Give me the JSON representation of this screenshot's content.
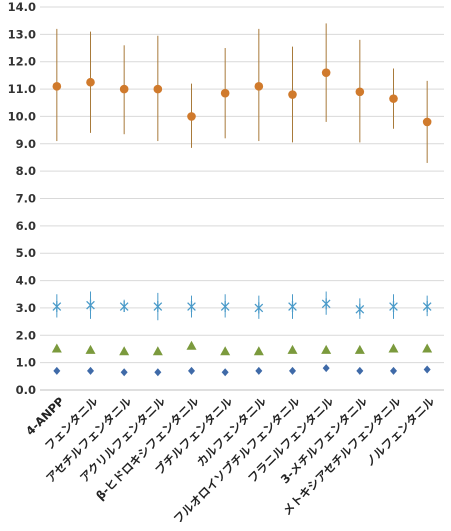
{
  "chart_data": {
    "type": "scatter",
    "title": "",
    "xlabel": "",
    "ylabel": "",
    "ylim": [
      0,
      14
    ],
    "ytick_step": 1,
    "ytick_labels": [
      "0.0",
      "1.0",
      "2.0",
      "3.0",
      "4.0",
      "5.0",
      "6.0",
      "7.0",
      "8.0",
      "9.0",
      "10.0",
      "11.0",
      "12.0",
      "13.0",
      "14.0"
    ],
    "grid": true,
    "legend": "none",
    "categories": [
      "4-ANPP",
      "フェンタニル",
      "アセチルフェンタニル",
      "アクリルフェンタニル",
      "β-ヒドロキシフェンタニル",
      "ブチルフェンタニル",
      "カルフェンタニル",
      "フルオロイソブチルフェンタニル",
      "フラニルフェンタニル",
      "3-メチルフェンタニル",
      "メトキシアセチルフェンタニル",
      "ノルフェンタニル"
    ],
    "series": [
      {
        "marker": "circle",
        "color": "#d07a2c",
        "error_bar_color": "#a87a3a",
        "values": [
          11.1,
          11.25,
          11.0,
          11.0,
          10.0,
          10.85,
          11.1,
          10.8,
          11.6,
          10.9,
          10.65,
          9.8
        ],
        "low": [
          9.1,
          9.4,
          9.35,
          9.1,
          8.85,
          9.2,
          9.1,
          9.05,
          9.8,
          9.05,
          9.55,
          8.3
        ],
        "high": [
          13.2,
          13.1,
          12.6,
          12.95,
          11.2,
          12.5,
          13.2,
          12.55,
          13.4,
          12.8,
          11.75,
          11.3
        ]
      },
      {
        "marker": "star",
        "color": "#4b9bc9",
        "values": [
          3.05,
          3.1,
          3.05,
          3.05,
          3.05,
          3.05,
          3.0,
          3.05,
          3.15,
          2.95,
          3.05,
          3.05
        ],
        "low": [
          2.65,
          2.6,
          2.85,
          2.55,
          2.65,
          2.65,
          2.6,
          2.6,
          2.75,
          2.6,
          2.6,
          2.7
        ],
        "high": [
          3.5,
          3.6,
          3.3,
          3.55,
          3.45,
          3.5,
          3.45,
          3.5,
          3.6,
          3.35,
          3.5,
          3.45
        ]
      },
      {
        "marker": "triangle",
        "color": "#7b9a3d",
        "values": [
          1.5,
          1.45,
          1.4,
          1.4,
          1.6,
          1.4,
          1.4,
          1.45,
          1.45,
          1.45,
          1.5,
          1.5
        ]
      },
      {
        "marker": "diamond",
        "color": "#3f6aa8",
        "values": [
          0.7,
          0.7,
          0.65,
          0.65,
          0.7,
          0.65,
          0.7,
          0.7,
          0.8,
          0.7,
          0.7,
          0.75
        ]
      }
    ]
  }
}
